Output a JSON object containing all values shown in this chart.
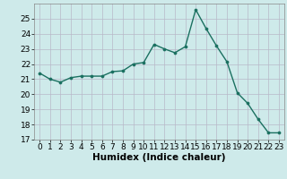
{
  "x": [
    0,
    1,
    2,
    3,
    4,
    5,
    6,
    7,
    8,
    9,
    10,
    11,
    12,
    13,
    14,
    15,
    16,
    17,
    18,
    19,
    20,
    21,
    22,
    23
  ],
  "y": [
    21.4,
    21.0,
    20.8,
    21.1,
    21.2,
    21.2,
    21.2,
    21.5,
    21.55,
    22.0,
    22.1,
    23.3,
    23.0,
    22.75,
    23.15,
    25.6,
    24.35,
    23.2,
    22.15,
    20.1,
    19.4,
    18.35,
    17.45,
    17.45
  ],
  "line_color": "#1a7060",
  "marker": "o",
  "marker_size": 2.2,
  "bg_color": "#ceeaea",
  "grid_color_major": "#b8b8c8",
  "grid_color_minor": "#d0d0d8",
  "xlabel": "Humidex (Indice chaleur)",
  "ylim": [
    17,
    26
  ],
  "xlim": [
    -0.5,
    23.5
  ],
  "yticks": [
    17,
    18,
    19,
    20,
    21,
    22,
    23,
    24,
    25
  ],
  "xticks": [
    0,
    1,
    2,
    3,
    4,
    5,
    6,
    7,
    8,
    9,
    10,
    11,
    12,
    13,
    14,
    15,
    16,
    17,
    18,
    19,
    20,
    21,
    22,
    23
  ],
  "tick_fontsize": 6.5,
  "xlabel_fontsize": 7.5,
  "linewidth": 1.0
}
